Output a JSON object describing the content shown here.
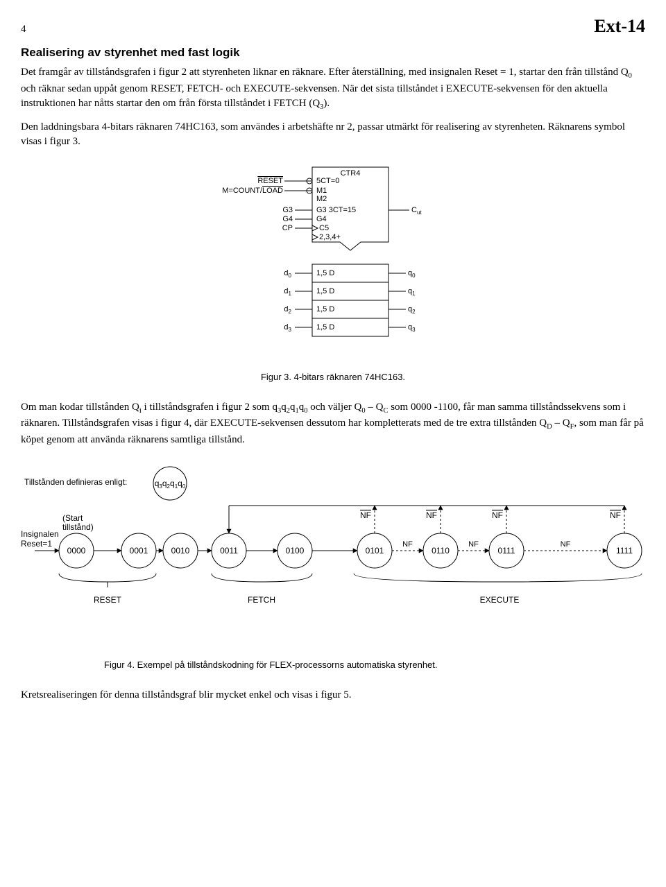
{
  "page_number": "4",
  "doc_label": "Ext-14",
  "section_title": "Realisering av styrenhet med fast logik",
  "para1_a": "Det framgår av tillståndsgrafen i figur 2 att styrenheten liknar en räknare. Efter återställning, med insignalen Reset = 1, startar den från tillstånd Q",
  "para1_b": " och räknar sedan uppåt genom RESET, FETCH- och EXECUTE-sekvensen. När det sista tillståndet i EXECUTE-sekvensen för den aktuella instruktionen har nåtts startar den om från första tillståndet i FETCH (Q",
  "para1_c": ").",
  "para2": "Den laddningsbara 4-bitars räknaren 74HC163, som användes i arbetshäfte nr 2, passar utmärkt för realisering av styrenheten. Räknarens symbol visas i figur 3.",
  "counter": {
    "title": "CTR4",
    "in_reset": "RESET",
    "in_mcl": "M=COUNT/LOAD",
    "in_g3": "G3",
    "in_g4": "G4",
    "in_cp": "CP",
    "l_5ct": "5CT=0",
    "l_m1": "M1",
    "l_m2": "M2",
    "l_g3_3ct": "G3  3CT=15",
    "l_g4": "G4",
    "l_c5": "C5",
    "l_234": "2,3,4+",
    "out_cut": "C",
    "out_cut_sub": "ut",
    "d": [
      "d",
      "d",
      "d",
      "d"
    ],
    "d_sub": [
      "0",
      "1",
      "2",
      "3"
    ],
    "cell": "1,5 D",
    "q": [
      "q",
      "q",
      "q",
      "q"
    ],
    "q_sub": [
      "0",
      "1",
      "2",
      "3"
    ]
  },
  "fig3_caption": "Figur 3.  4-bitars räknaren 74HC163.",
  "para3_a": "Om man kodar tillstånden Q",
  "para3_b": " i tillståndsgrafen i figur 2 som q",
  "para3_c": "q",
  "para3_d": "q",
  "para3_e": "q",
  "para3_f": " och väljer Q",
  "para3_g": " – Q",
  "para3_h": " som 0000 -1100, får man samma tillståndssekvens som i räknaren. Tillståndsgrafen visas i figur 4, där EXECUTE-sekvensen dessutom har kompletterats med de tre extra tillstånden Q",
  "para3_i": " – Q",
  "para3_j": ", som man får på köpet genom att använda räknarens samtliga tillstånd.",
  "graph": {
    "def_label": "Tillstånden definieras enligt:",
    "key_q": "q",
    "key_subs": [
      "3",
      "2",
      "1",
      "0"
    ],
    "start_label_a": "(Start",
    "start_label_b": "tillstånd)",
    "insig_a": "Insignalen",
    "insig_b": "Reset=1",
    "states": [
      "0000",
      "0001",
      "0010",
      "0011",
      "0100",
      "0101",
      "0110",
      "0111",
      "1111"
    ],
    "nf": "NF",
    "phase_reset": "RESET",
    "phase_fetch": "FETCH",
    "phase_exec": "EXECUTE"
  },
  "fig4_caption": "Figur 4. Exempel på tillståndskodning för FLEX-processorns automatiska styrenhet.",
  "para4": "Kretsrealiseringen för denna tillståndsgraf blir mycket enkel och visas i figur 5."
}
